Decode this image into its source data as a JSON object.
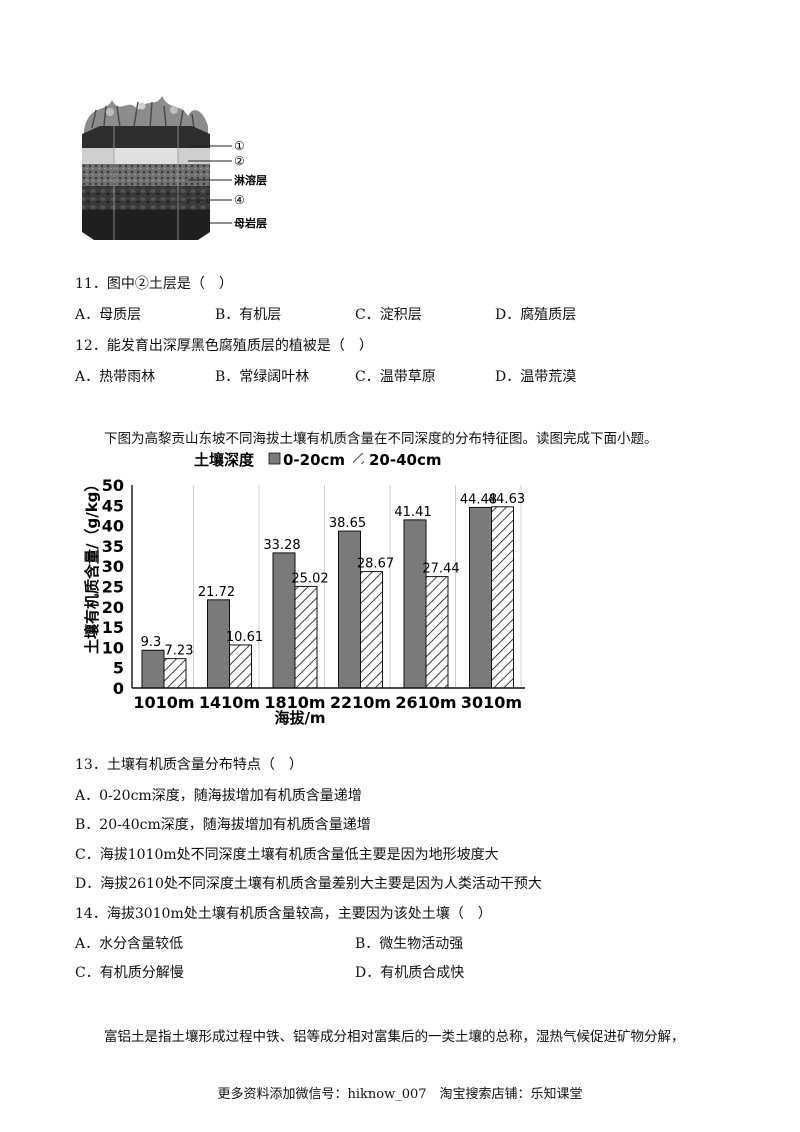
{
  "soil_figure": {
    "labels": [
      "①",
      "②",
      "淋溶层",
      "④",
      "母岩层"
    ]
  },
  "questions_1": [
    {
      "number": "11．",
      "text": "图中②土层是（　）",
      "options": [
        {
          "key": "A．",
          "text": "母质层"
        },
        {
          "key": "B．",
          "text": "有机层"
        },
        {
          "key": "C．",
          "text": "淀积层"
        },
        {
          "key": "D．",
          "text": "腐殖质层"
        }
      ]
    },
    {
      "number": "12．",
      "text": "能发育出深厚黑色腐殖质层的植被是（　）",
      "options": [
        {
          "key": "A．",
          "text": "热带雨林"
        },
        {
          "key": "B．",
          "text": "常绿阔叶林"
        },
        {
          "key": "C．",
          "text": "温带草原"
        },
        {
          "key": "D．",
          "text": "温带荒漠"
        }
      ]
    }
  ],
  "intro": "下图为高黎贡山东坡不同海拔土壤有机质含量在不同深度的分布特征图。读图完成下面小题。",
  "chart_data": {
    "type": "bar",
    "legend_title": "土壤深度",
    "categories": [
      "1010m",
      "1410m",
      "1810m",
      "2210m",
      "2610m",
      "3010m"
    ],
    "series": [
      {
        "name": "0-20cm",
        "values": [
          9.3,
          21.72,
          33.28,
          38.65,
          41.41,
          44.48
        ],
        "labels": [
          "9.3",
          "21.72",
          "33.28",
          "38.65",
          "41.41",
          "44.48"
        ],
        "fill": "#7a7a7a"
      },
      {
        "name": "20-40cm",
        "values": [
          7.23,
          10.61,
          25.02,
          28.67,
          27.44,
          44.63
        ],
        "labels": [
          "7.23",
          "10.61",
          "25.02",
          "28.67",
          "27.44",
          "44.63"
        ],
        "fill": "hatch"
      }
    ],
    "ylabel": "土壤有机质含量/（g/kg）",
    "xlabel": "海拔/m",
    "ylim": [
      0,
      50
    ],
    "yticks": [
      "0",
      "5",
      "10",
      "15",
      "20",
      "25",
      "30",
      "35",
      "40",
      "45",
      "50"
    ],
    "grid": "vertical",
    "legend_position": "top"
  },
  "questions_2": [
    {
      "number": "13．",
      "text": "土壤有机质含量分布特点（　）",
      "options": [
        {
          "key": "A．",
          "text": "0-20cm深度，随海拔增加有机质含量递增"
        },
        {
          "key": "B．",
          "text": "20-40cm深度，随海拔增加有机质含量递增"
        },
        {
          "key": "C．",
          "text": "海拔1010m处不同深度土壤有机质含量低主要是因为地形坡度大"
        },
        {
          "key": "D．",
          "text": "海拔2610处不同深度土壤有机质含量差别大主要是因为人类活动干预大"
        }
      ]
    },
    {
      "number": "14．",
      "text": "海拔3010m处土壤有机质含量较高，主要因为该处土壤（　）",
      "options": [
        {
          "key": "A．",
          "text": "水分含量较低"
        },
        {
          "key": "B．",
          "text": "微生物活动强"
        },
        {
          "key": "C．",
          "text": "有机质分解慢"
        },
        {
          "key": "D．",
          "text": "有机质合成快"
        }
      ]
    }
  ],
  "closing_text": "富铝土是指土壤形成过程中铁、铝等成分相对富集后的一类土壤的总称，湿热气候促进矿物分解，",
  "footer": "更多资料添加微信号：hiknow_007　淘宝搜索店铺：乐知课堂"
}
